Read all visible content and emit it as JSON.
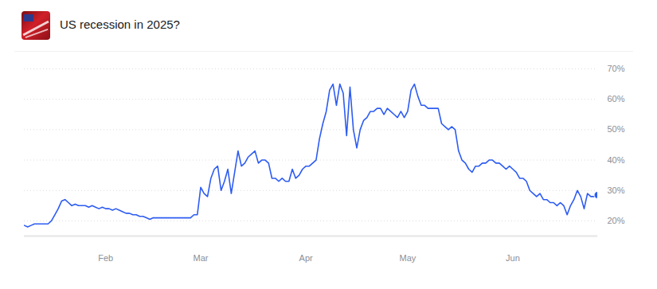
{
  "chart_data": {
    "type": "line",
    "title": "US recession in 2025?",
    "color": "#2d5cf2",
    "grid": true,
    "ylim": [
      15,
      70
    ],
    "yticks": [
      {
        "value": 20,
        "label": "20%"
      },
      {
        "value": 30,
        "label": "30%"
      },
      {
        "value": 40,
        "label": "40%"
      },
      {
        "value": 50,
        "label": "50%"
      },
      {
        "value": 60,
        "label": "60%"
      },
      {
        "value": 70,
        "label": "70%"
      }
    ],
    "categories": [
      null,
      null,
      null,
      null,
      null,
      null,
      null,
      null,
      null,
      null,
      null,
      null,
      null,
      null,
      null,
      null,
      null,
      null,
      null,
      null,
      null,
      null,
      null,
      null,
      "Feb",
      null,
      null,
      null,
      null,
      null,
      null,
      null,
      null,
      null,
      null,
      null,
      null,
      null,
      null,
      null,
      null,
      null,
      null,
      null,
      null,
      null,
      null,
      null,
      null,
      null,
      null,
      null,
      "Mar",
      null,
      null,
      null,
      null,
      null,
      null,
      null,
      null,
      null,
      null,
      null,
      null,
      null,
      null,
      null,
      null,
      null,
      null,
      null,
      null,
      null,
      null,
      null,
      null,
      null,
      null,
      null,
      null,
      null,
      null,
      "Apr",
      null,
      null,
      null,
      null,
      null,
      null,
      null,
      null,
      null,
      null,
      null,
      null,
      null,
      null,
      null,
      null,
      null,
      null,
      null,
      null,
      null,
      null,
      null,
      null,
      null,
      null,
      null,
      null,
      null,
      "May",
      null,
      null,
      null,
      null,
      null,
      null,
      null,
      null,
      null,
      null,
      null,
      null,
      null,
      null,
      null,
      null,
      null,
      null,
      null,
      null,
      null,
      null,
      null,
      null,
      null,
      null,
      null,
      null,
      null,
      null,
      "Jun",
      null,
      null,
      null,
      null,
      null,
      null,
      null,
      null,
      null,
      null,
      null,
      null,
      null,
      null,
      null,
      null,
      null,
      null,
      null,
      null,
      null,
      null,
      null,
      null,
      null
    ],
    "values": [
      18.5,
      18,
      18.5,
      19,
      19,
      19,
      19,
      19,
      20,
      22,
      24,
      26.5,
      27,
      26,
      25,
      25.5,
      25,
      25,
      25,
      24.5,
      25,
      24.5,
      24,
      24.5,
      24,
      24,
      23.5,
      24,
      23.5,
      23,
      22.5,
      22.5,
      22,
      22,
      21.5,
      21.5,
      21,
      20.5,
      21,
      21,
      21,
      21,
      21,
      21,
      21,
      21,
      21,
      21,
      21,
      21,
      22,
      22,
      31,
      29,
      28,
      34,
      37,
      38,
      30,
      33,
      37,
      29,
      36,
      43,
      38,
      39,
      41,
      42,
      43,
      39,
      40,
      40,
      39,
      34,
      34,
      33,
      34,
      33,
      33,
      37,
      34,
      35,
      37,
      38,
      38,
      39,
      40,
      47,
      52,
      56,
      63,
      65,
      58,
      65,
      62,
      48,
      64,
      50,
      44,
      50,
      53,
      54,
      56,
      56,
      57,
      57,
      55,
      57,
      56,
      55,
      54,
      56,
      54,
      56,
      63,
      65,
      61,
      58,
      58,
      57,
      57,
      57,
      57,
      52,
      51,
      50,
      51,
      50,
      43,
      40,
      39,
      37,
      36,
      38,
      38,
      39,
      39,
      40,
      40,
      39,
      39,
      38,
      37,
      38,
      37,
      36,
      34,
      34,
      33,
      30,
      29,
      28,
      29,
      27,
      27,
      26,
      26,
      25,
      26,
      25,
      22,
      25,
      27,
      30,
      28,
      24,
      29,
      28,
      28,
      28.5
    ]
  }
}
